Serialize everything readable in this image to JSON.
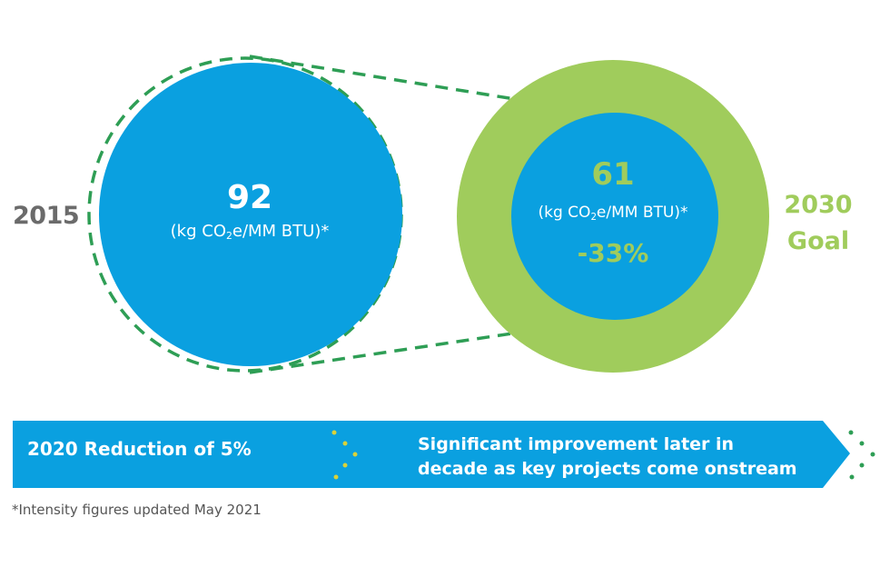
{
  "left": {
    "year": "2015",
    "value": "92",
    "unit_prefix": "(kg CO",
    "unit_sub": "2",
    "unit_suffix": "e/MM BTU)*"
  },
  "right": {
    "year": "2030",
    "goal": "Goal",
    "value": "61",
    "unit_prefix": "(kg CO",
    "unit_sub": "2",
    "unit_suffix": "e/MM BTU)*",
    "reduction": "-33%"
  },
  "banner": {
    "left_text": "2020 Reduction of 5%",
    "right_line1": "Significant improvement later in",
    "right_line2": "decade as key projects come onstream"
  },
  "footnote": "*Intensity figures updated May 2021",
  "colors": {
    "blue": "#0aa0e0",
    "green": "#a0cc5c",
    "dashed_green": "#2e9e55",
    "dots_yellow": "#d8d23a",
    "gray_text": "#6b6b6b"
  }
}
